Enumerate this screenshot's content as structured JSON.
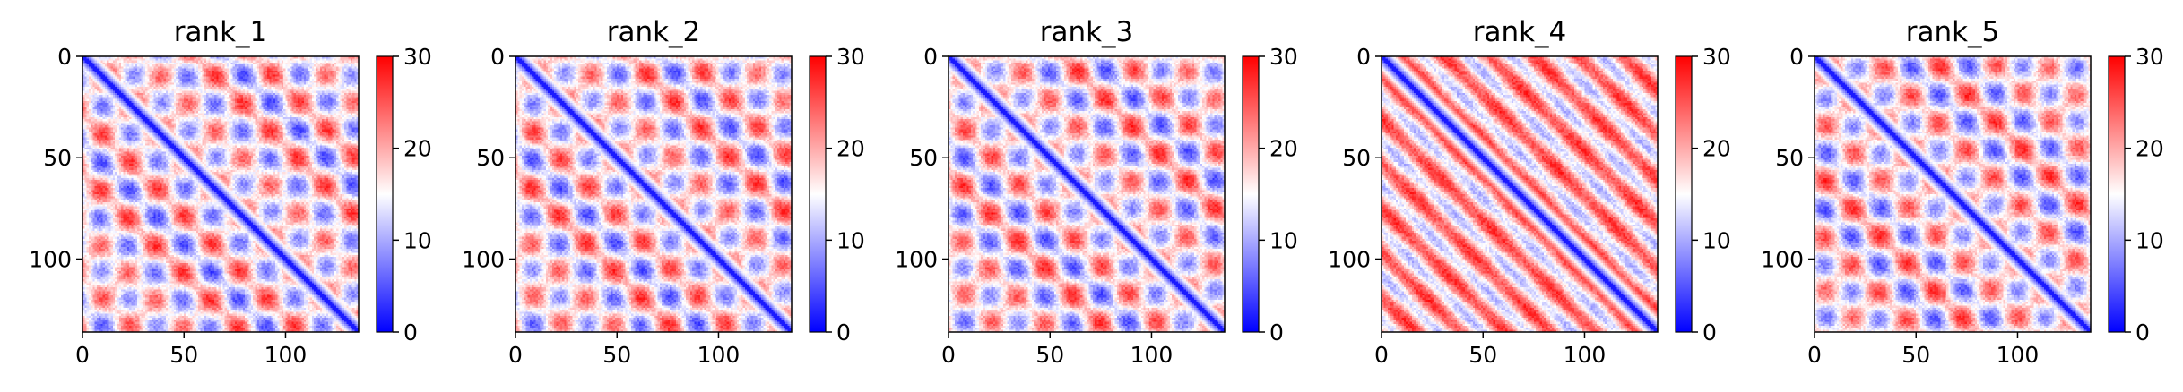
{
  "figure": {
    "panels": [
      {
        "title": "rank_1"
      },
      {
        "title": "rank_2"
      },
      {
        "title": "rank_3"
      },
      {
        "title": "rank_4"
      },
      {
        "title": "rank_5"
      }
    ]
  },
  "chart_data": {
    "type": "heatmap",
    "colormap": "bwr",
    "colormap_colors": [
      "#0000ff",
      "#ffffff",
      "#ff0000"
    ],
    "shared_axes": {
      "x_range": [
        0,
        136
      ],
      "y_range": [
        0,
        136
      ],
      "y_inverted": true,
      "x_ticks": [
        0,
        50,
        100
      ],
      "x_tick_labels": [
        "0",
        "50",
        "100"
      ],
      "y_ticks": [
        0,
        50,
        100
      ],
      "y_tick_labels": [
        "0",
        "50",
        "100"
      ],
      "grid": false
    },
    "colorbar": {
      "range": [
        0,
        30
      ],
      "ticks": [
        0,
        10,
        20,
        30
      ],
      "tick_labels": [
        "0",
        "10",
        "20",
        "30"
      ]
    },
    "panels": [
      {
        "title": "rank_1",
        "matrix_size": 136,
        "description_pattern": "distance matrix, low diagonal, periodic blocks period ~27"
      },
      {
        "title": "rank_2",
        "matrix_size": 136,
        "description_pattern": "distance matrix, low diagonal, periodic blocks period ~27"
      },
      {
        "title": "rank_3",
        "matrix_size": 136,
        "description_pattern": "distance matrix, low diagonal, periodic blocks period ~27"
      },
      {
        "title": "rank_4",
        "matrix_size": 136,
        "description_pattern": "distance matrix, low diagonal, diagonal stripes period ~22"
      },
      {
        "title": "rank_5",
        "matrix_size": 136,
        "description_pattern": "distance matrix, low diagonal, periodic blocks period ~27"
      }
    ]
  }
}
